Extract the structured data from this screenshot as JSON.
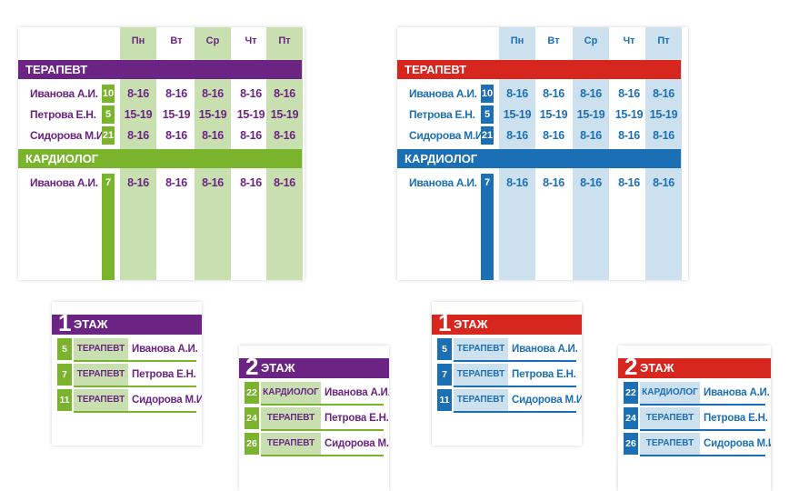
{
  "days": [
    "Пн",
    "Вт",
    "Ср",
    "Чт",
    "Пт"
  ],
  "sections": [
    {
      "title": "ТЕРАПЕВТ",
      "rows": [
        {
          "name": "Иванова А.И.",
          "room": "10",
          "hours": [
            "8-16",
            "8-16",
            "8-16",
            "8-16",
            "8-16"
          ]
        },
        {
          "name": "Петрова Е.Н.",
          "room": "5",
          "hours": [
            "15-19",
            "15-19",
            "15-19",
            "15-19",
            "15-19"
          ]
        },
        {
          "name": "Сидорова М.И.",
          "room": "21",
          "hours": [
            "8-16",
            "8-16",
            "8-16",
            "8-16",
            "8-16"
          ]
        }
      ]
    },
    {
      "title": "КАРДИОЛОГ",
      "rows": [
        {
          "name": "Иванова А.И.",
          "room": "7",
          "hours": [
            "8-16",
            "8-16",
            "8-16",
            "8-16",
            "8-16"
          ]
        }
      ]
    }
  ],
  "floor_word": "ЭТАЖ",
  "floor1": {
    "number": "1",
    "rows": [
      {
        "room": "5",
        "spec": "ТЕРАПЕВТ",
        "name": "Иванова А.И."
      },
      {
        "room": "7",
        "spec": "ТЕРАПЕВТ",
        "name": "Петрова Е.Н."
      },
      {
        "room": "11",
        "spec": "ТЕРАПЕВТ",
        "name": "Сидорова М.И."
      }
    ]
  },
  "floor2": {
    "number": "2",
    "rows": [
      {
        "room": "22",
        "spec": "КАРДИОЛОГ",
        "name": "Иванова А.И."
      },
      {
        "room": "24",
        "spec": "ТЕРАПЕВТ",
        "name": "Петрова Е.Н."
      },
      {
        "room": "26",
        "spec": "ТЕРАПЕВТ",
        "name": "Сидорова М.И."
      }
    ]
  },
  "themes": {
    "green": {
      "bar": "#6b2484",
      "accent": "#7ab42c",
      "light": "#c8e0b0",
      "text": "#6b2484"
    },
    "blue": {
      "bar": "#d7261e",
      "accent": "#1b6fb5",
      "light": "#cde0ee",
      "text": "#1b6fb5"
    }
  }
}
